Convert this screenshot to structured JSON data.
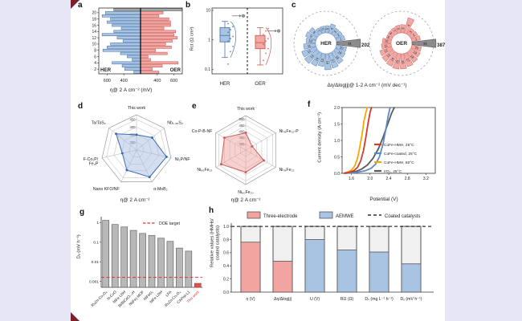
{
  "figure": {
    "background_color": "#e6e6f6",
    "card_color": "#ffffff",
    "corner_mark_color": "#7d1f2d",
    "accent_blue": "#aac4e2",
    "accent_blue_stroke": "#4878b0",
    "accent_red": "#f2a8a4",
    "accent_red_stroke": "#cc5a55",
    "accent_gray": "#9e9e9e"
  },
  "panels": {
    "a": {
      "letter": "a"
    },
    "b": {
      "letter": "b"
    },
    "c": {
      "letter": "c"
    },
    "d": {
      "letter": "d"
    },
    "e": {
      "letter": "e"
    },
    "f": {
      "letter": "f"
    },
    "g": {
      "letter": "g"
    },
    "h": {
      "letter": "h"
    }
  },
  "chart_data": [
    {
      "panel": "a",
      "type": "bar",
      "subtype": "mirrored-tornado",
      "xlabel": "η@ 2 A cm⁻² (mV)",
      "left_series": "HER",
      "right_series": "OER",
      "x_ticks": [
        600,
        400,
        400,
        600
      ],
      "y_tick_rows": [
        2,
        4,
        6,
        8,
        10,
        12,
        14,
        16,
        18,
        20
      ],
      "center_value": 200,
      "edge_value": 700,
      "her": [
        280,
        390,
        420,
        540,
        300,
        360,
        440,
        650,
        600,
        560,
        410,
        480,
        660,
        520,
        430,
        540,
        600,
        560,
        660,
        620,
        520
      ],
      "oer": [
        420,
        340,
        460,
        650,
        320,
        290,
        520,
        380,
        570,
        500,
        580,
        640,
        600,
        620,
        480,
        560,
        560,
        540,
        420,
        470,
        760
      ],
      "highlight_row": 21
    },
    {
      "panel": "b",
      "type": "box",
      "scale": "log",
      "ylabel": "Rct (Ω cm²)",
      "y_ticks": [
        10,
        1,
        0.1
      ],
      "ylim": [
        0.07,
        12
      ],
      "groups": [
        {
          "label": "HER",
          "median": 1.4,
          "q1": 0.85,
          "q3": 2.6,
          "whisker_low": 0.25,
          "whisker_high": 4.2,
          "reference_point": 6.5,
          "points": [
            0.15,
            0.4,
            0.6,
            0.9,
            1.1,
            1.3,
            1.8,
            2.2,
            2.8,
            3.5
          ]
        },
        {
          "label": "OER",
          "median": 0.8,
          "q1": 0.5,
          "q3": 1.4,
          "whisker_low": 0.14,
          "whisker_high": 2.6,
          "reference_point": 2.0,
          "points": [
            0.2,
            0.35,
            0.5,
            0.7,
            0.9,
            1.1,
            1.5,
            2.0,
            2.4
          ]
        }
      ]
    },
    {
      "panel": "c",
      "type": "polar-bar",
      "caption": "Δη/Δlog|j|@ 1-2 A cm⁻² (mV dec⁻¹)",
      "charts": [
        {
          "center_label": "HER",
          "highlight_index": 21,
          "highlight_value": 202,
          "annotation": "202",
          "values": [
            110,
            100,
            95,
            120,
            90,
            85,
            80,
            130,
            140,
            120,
            150,
            190,
            200,
            180,
            160,
            200,
            190,
            170,
            140,
            130,
            202
          ]
        },
        {
          "center_label": "OER",
          "highlight_index": 21,
          "highlight_value": 387,
          "annotation": "387",
          "values": [
            180,
            160,
            150,
            330,
            170,
            160,
            140,
            130,
            120,
            180,
            200,
            260,
            280,
            300,
            320,
            310,
            280,
            250,
            220,
            200,
            387
          ]
        }
      ]
    },
    {
      "panel": "d",
      "type": "radar",
      "caption": "η@ 2 A cm⁻²",
      "ticks": [
        450,
        400,
        350,
        300
      ],
      "rmin": 250,
      "rmax": 480,
      "axes": [
        "This work",
        "Nb₁.₃₅S₂",
        "Ni₂P/NF",
        "α-MoB₂",
        "Nano KFO/NF",
        "F-Co₂P/\nFe₃P",
        "Ta/TaS₂"
      ],
      "values": [
        350,
        380,
        450,
        445,
        395,
        345,
        420
      ]
    },
    {
      "panel": "e",
      "type": "radar",
      "caption": "η@ 2 A cm⁻²",
      "ticks": [
        500,
        450,
        400,
        350,
        300
      ],
      "rmin": 250,
      "rmax": 530,
      "axes": [
        "This work",
        "Ni₇₈Fe₂₂-P",
        "Ni₇₈Fe₂₂",
        "Ni₈₀Fe₂₀",
        "Ni₈₅Fe₁₅",
        "Co-P-B-NF"
      ],
      "values": [
        390,
        310,
        420,
        430,
        480,
        450
      ]
    },
    {
      "panel": "f",
      "type": "line",
      "xlabel": "Potential (V)",
      "ylabel": "Current density (A cm⁻²)",
      "xlim": [
        1.4,
        3.4
      ],
      "ylim": [
        0,
        2
      ],
      "x_ticks": [
        1.6,
        2.0,
        2.4,
        2.8,
        3.2
      ],
      "y_ticks": [
        0.0,
        0.5,
        1.0,
        1.5,
        2.0
      ],
      "series": [
        {
          "name": "CoFe-HMH, 25°C",
          "color": "#d6372f",
          "x": [
            1.45,
            1.55,
            1.65,
            1.73,
            1.8,
            1.86,
            1.91,
            1.96,
            2.0,
            2.03
          ],
          "y": [
            0.01,
            0.03,
            0.08,
            0.18,
            0.38,
            0.7,
            1.1,
            1.55,
            1.85,
            2.0
          ]
        },
        {
          "name": "CoFe-coated, 25°C",
          "color": "#5b8ac5",
          "x": [
            1.45,
            1.6,
            1.75,
            1.9,
            2.02,
            2.12,
            2.2,
            2.28,
            2.34,
            2.39,
            2.43
          ],
          "y": [
            0.0,
            0.01,
            0.04,
            0.08,
            0.15,
            0.28,
            0.5,
            0.9,
            1.35,
            1.75,
            2.0
          ]
        },
        {
          "name": "CoFe-HMH, 60°C",
          "color": "#f2a900",
          "x": [
            1.45,
            1.52,
            1.6,
            1.67,
            1.73,
            1.78,
            1.83,
            1.87,
            1.91,
            1.94
          ],
          "y": [
            0.01,
            0.04,
            0.1,
            0.22,
            0.45,
            0.8,
            1.2,
            1.6,
            1.85,
            2.0
          ]
        },
        {
          "name": "IrO₂, 25°C",
          "color": "#595959",
          "x": [
            1.45,
            1.58,
            1.7,
            1.82,
            1.94,
            2.06,
            2.18,
            2.28,
            2.38,
            2.46,
            2.52
          ],
          "y": [
            0.0,
            0.02,
            0.06,
            0.13,
            0.25,
            0.45,
            0.75,
            1.1,
            1.5,
            1.82,
            2.0
          ]
        }
      ]
    },
    {
      "panel": "g",
      "type": "bar",
      "scale": "log",
      "ylabel": "Dᵥ (mV h⁻¹)",
      "y_ticks": [
        1,
        0.1,
        0.01,
        0.001
      ],
      "ylim": [
        0.0005,
        2
      ],
      "doe_target": 0.0016,
      "doe_label": "DOE target",
      "categories": [
        "RuZn-Co₃O₄",
        "N-CoO",
        "NiFe LDH",
        "Bi/BiCeO₁.₅H",
        "Ni(Fe) MOF",
        "NiFeOₓ",
        "NiFe LDH",
        "LFA",
        "RuZn-Co₃O₄",
        "CAPist-L1",
        "This work"
      ],
      "values": [
        1.3,
        0.8,
        0.6,
        0.4,
        0.28,
        0.22,
        0.16,
        0.11,
        0.05,
        0.035,
        0.0008
      ],
      "highlight_index": 10,
      "highlight_color": "#d9534f",
      "bar_color": "#b8b8b8"
    },
    {
      "panel": "h",
      "type": "bar",
      "ylabel": "Relative values (HMHs/\ncoated catalysts)",
      "y_ticks": [
        0.0,
        0.2,
        0.4,
        0.6,
        0.8,
        1.0
      ],
      "ylim": [
        0,
        1.05
      ],
      "reference_line": 1.0,
      "legend": [
        {
          "label": "Three-electrode",
          "color": "#f2a4a0"
        },
        {
          "label": "AEMWE",
          "color": "#a8c4e2"
        },
        {
          "label": "Coated catalysts",
          "style": "dashed"
        }
      ],
      "categories": [
        "η (V)",
        "Δη/Δlog|j|",
        "U (V)",
        "RΩ (Ω)",
        "Dₛ (mg L⁻¹ h⁻¹)",
        "Dᵥ (mV h⁻¹)"
      ],
      "values": [
        0.76,
        0.47,
        0.8,
        0.64,
        0.61,
        0.43
      ],
      "bar_groups": [
        "three-electrode",
        "three-electrode",
        "aemwe",
        "aemwe",
        "aemwe",
        "aemwe"
      ]
    }
  ]
}
